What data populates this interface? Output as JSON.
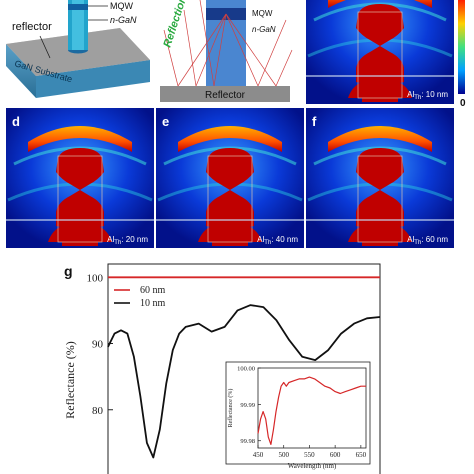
{
  "schematic_a": {
    "labels": {
      "reflector": "reflector",
      "mqw": "MQW",
      "ngan": "n-GaN",
      "substrate": "GaN Substrate"
    }
  },
  "schematic_b": {
    "labels": {
      "mqw": "MQW",
      "ngan": "n-GaN",
      "reflection": "Reflection",
      "reflector": "Reflector"
    }
  },
  "field_maps": [
    {
      "letter": "",
      "label_prefix": "Al",
      "label_sub": "Th",
      "label_value": ": 10 nm"
    },
    {
      "letter": "d",
      "label_prefix": "Al",
      "label_sub": "Th",
      "label_value": ": 20 nm"
    },
    {
      "letter": "e",
      "label_prefix": "Al",
      "label_sub": "Th",
      "label_value": ": 40 nm"
    },
    {
      "letter": "f",
      "label_prefix": "Al",
      "label_sub": "Th",
      "label_value": ": 60 nm"
    }
  ],
  "colorbar": {
    "min_label": "0",
    "colors": [
      "#ff2000",
      "#ffd000",
      "#40e080",
      "#00a0ff",
      "#000090"
    ]
  },
  "panel_g_letter": "g",
  "chart_data": [
    {
      "type": "line",
      "title": "",
      "xlabel": "",
      "ylabel": "Reflectance (%)",
      "ylim": [
        70,
        102
      ],
      "yticks": [
        80,
        90,
        100
      ],
      "xlim": [
        450,
        660
      ],
      "legend_placement": "top-left",
      "series": [
        {
          "name": "60 nm",
          "color": "#d62728",
          "x": [
            450,
            660
          ],
          "y": [
            99.99,
            99.99
          ]
        },
        {
          "name": "10 nm",
          "color": "#111111",
          "x": [
            450,
            455,
            460,
            465,
            470,
            475,
            480,
            485,
            490,
            495,
            500,
            505,
            510,
            520,
            530,
            540,
            550,
            560,
            570,
            580,
            590,
            600,
            610,
            620,
            630,
            640,
            650,
            660
          ],
          "y": [
            89.5,
            91.5,
            92.0,
            91.5,
            88.0,
            82.0,
            75.0,
            72.8,
            77.0,
            84.0,
            89.0,
            91.5,
            92.5,
            93.0,
            91.8,
            92.5,
            95.0,
            95.8,
            95.5,
            93.5,
            90.5,
            88.0,
            87.5,
            89.0,
            91.5,
            93.0,
            93.8,
            94.0
          ]
        }
      ]
    },
    {
      "type": "line",
      "title": "",
      "xlabel": "Wavelength (nm)",
      "ylabel": "Reflectance (%)",
      "xlim": [
        450,
        660
      ],
      "ylim": [
        99.978,
        100.0
      ],
      "xticks": [
        450,
        500,
        550,
        600,
        650
      ],
      "yticks": [
        99.98,
        99.99,
        100.0
      ],
      "series": [
        {
          "color": "#d62728",
          "x": [
            450,
            455,
            460,
            465,
            470,
            475,
            480,
            485,
            490,
            495,
            500,
            505,
            510,
            520,
            530,
            540,
            550,
            560,
            570,
            580,
            590,
            600,
            610,
            620,
            630,
            640,
            650,
            660
          ],
          "y": [
            99.982,
            99.986,
            99.988,
            99.986,
            99.981,
            99.979,
            99.983,
            99.988,
            99.992,
            99.995,
            99.996,
            99.995,
            99.996,
            99.9965,
            99.997,
            99.997,
            99.9975,
            99.997,
            99.996,
            99.995,
            99.9945,
            99.9935,
            99.993,
            99.9935,
            99.994,
            99.9945,
            99.995,
            99.995
          ]
        }
      ]
    }
  ]
}
